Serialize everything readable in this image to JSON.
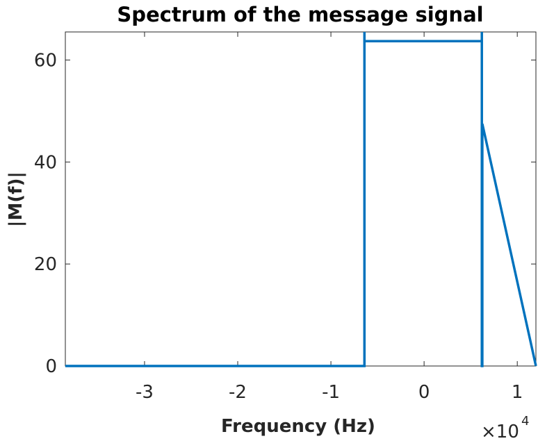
{
  "chart_data": {
    "type": "line",
    "title": "Spectrum of the message signal",
    "xlabel": "Frequency (Hz)",
    "ylabel": "|M(f)|",
    "x_multiplier_base": "×10",
    "x_multiplier_exponent": "4",
    "xlim": [
      -3.85,
      1.2
    ],
    "ylim": [
      0,
      65.5
    ],
    "xticks": [
      -3,
      -2,
      -1,
      0,
      1
    ],
    "xtick_labels": [
      "-3",
      "-2",
      "-1",
      "0",
      "1"
    ],
    "yticks": [
      0,
      20,
      40,
      60
    ],
    "ytick_labels": [
      "0",
      "20",
      "40",
      "60"
    ],
    "grid": false,
    "series": [
      {
        "color": "#0072BD",
        "x": [
          -3.85,
          -0.64,
          -0.64,
          -0.64,
          0.62,
          0.62,
          0.62,
          0.625,
          0.625,
          1.2
        ],
        "y": [
          0,
          0,
          65.5,
          63.7,
          63.7,
          65.5,
          0,
          0,
          47.5,
          0
        ]
      }
    ]
  }
}
